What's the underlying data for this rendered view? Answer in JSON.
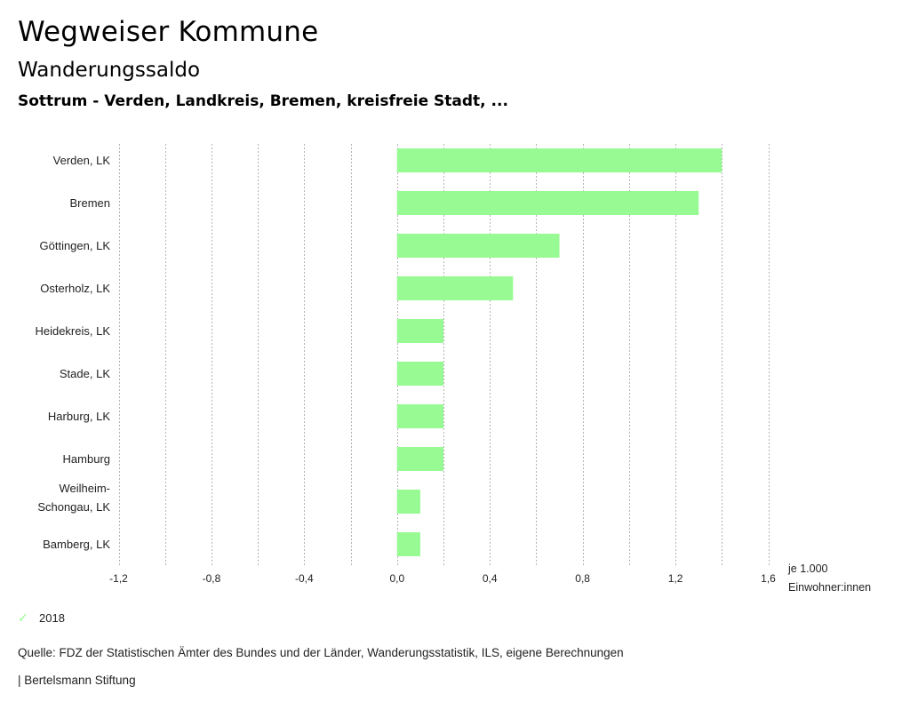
{
  "header": {
    "title": "Wegweiser Kommune",
    "subtitle": "Wanderungssaldo",
    "region": "Sottrum - Verden, Landkreis, Bremen, kreisfreie Stadt, ..."
  },
  "chart_data": {
    "type": "bar",
    "orientation": "horizontal",
    "categories": [
      [
        "Verden, LK"
      ],
      [
        "Bremen"
      ],
      [
        "Göttingen, LK"
      ],
      [
        "Osterholz, LK"
      ],
      [
        "Heidekreis, LK"
      ],
      [
        "Stade, LK"
      ],
      [
        "Harburg, LK"
      ],
      [
        "Hamburg"
      ],
      [
        "Weilheim-",
        "Schongau, LK"
      ],
      [
        "Bamberg, LK"
      ]
    ],
    "series": [
      {
        "name": "2018",
        "color": "#98fa93",
        "values": [
          1.4,
          1.3,
          0.7,
          0.5,
          0.2,
          0.2,
          0.2,
          0.2,
          0.1,
          0.1
        ]
      }
    ],
    "xlim": [
      -1.2,
      1.6
    ],
    "xticks": [
      -1.2,
      -0.8,
      -0.4,
      0.0,
      0.4,
      0.8,
      1.2,
      1.6
    ],
    "xtick_labels": [
      "-1,2",
      "-0,8",
      "-0,4",
      "0,0",
      "0,4",
      "0,8",
      "1,2",
      "1,6"
    ],
    "gridlines": [
      -1.2,
      -1.0,
      -0.8,
      -0.6,
      -0.4,
      -0.2,
      0.0,
      0.2,
      0.4,
      0.6,
      0.8,
      1.0,
      1.2,
      1.4,
      1.6
    ],
    "grid": true,
    "xlabel_line1": "je 1.000",
    "xlabel_line2": "Einwohner:innen",
    "legend_position": "bottom-left"
  },
  "legend": {
    "label": "2018",
    "icon": "check-icon",
    "color": "#98fa93"
  },
  "footer": {
    "source": "Quelle: FDZ der Statistischen Ämter des Bundes und der Länder, Wanderungsstatistik, ILS, eigene Berechnungen",
    "brand": "| Bertelsmann Stiftung"
  }
}
